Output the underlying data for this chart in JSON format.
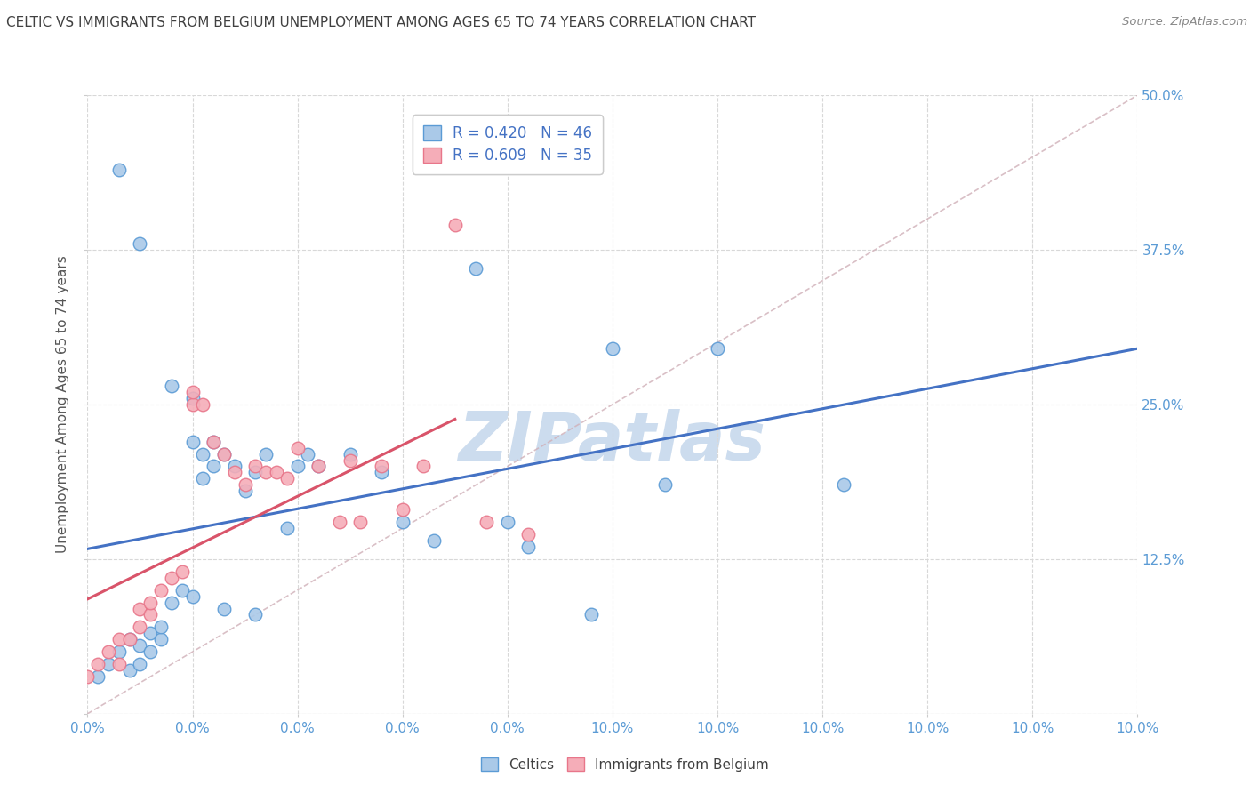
{
  "title": "CELTIC VS IMMIGRANTS FROM BELGIUM UNEMPLOYMENT AMONG AGES 65 TO 74 YEARS CORRELATION CHART",
  "source": "Source: ZipAtlas.com",
  "ylabel": "Unemployment Among Ages 65 to 74 years",
  "xlim": [
    0.0,
    0.1
  ],
  "ylim": [
    0.0,
    0.5
  ],
  "xticks": [
    0.0,
    0.01,
    0.02,
    0.03,
    0.04,
    0.05,
    0.06,
    0.07,
    0.08,
    0.09,
    0.1
  ],
  "xticklabels_show": {
    "0.0": "0.0%",
    "0.1": "10.0%"
  },
  "yticks": [
    0.0,
    0.125,
    0.25,
    0.375,
    0.5
  ],
  "yticklabels": [
    "",
    "12.5%",
    "25.0%",
    "37.5%",
    "50.0%"
  ],
  "R_celtics": 0.42,
  "N_celtics": 46,
  "R_belgium": 0.609,
  "N_belgium": 35,
  "celtics_color": "#aac9e8",
  "belgium_color": "#f5adb8",
  "celtics_edge_color": "#5b9bd5",
  "belgium_edge_color": "#e8768a",
  "celtics_line_color": "#4472c4",
  "belgium_line_color": "#d9546a",
  "ref_line_color": "#d0b0b8",
  "title_color": "#404040",
  "source_color": "#888888",
  "axis_label_color": "#555555",
  "tick_color": "#5b9bd5",
  "grid_color": "#d8d8d8",
  "watermark_color": "#ccdcee",
  "celtics_x": [
    0.001,
    0.002,
    0.003,
    0.004,
    0.004,
    0.005,
    0.005,
    0.006,
    0.006,
    0.007,
    0.007,
    0.008,
    0.009,
    0.01,
    0.01,
    0.011,
    0.011,
    0.012,
    0.012,
    0.013,
    0.014,
    0.015,
    0.016,
    0.017,
    0.019,
    0.02,
    0.021,
    0.022,
    0.025,
    0.028,
    0.03,
    0.033,
    0.037,
    0.04,
    0.042,
    0.048,
    0.05,
    0.055,
    0.06,
    0.072,
    0.008,
    0.01,
    0.013,
    0.016,
    0.003,
    0.005
  ],
  "celtics_y": [
    0.03,
    0.04,
    0.05,
    0.035,
    0.06,
    0.04,
    0.055,
    0.05,
    0.065,
    0.06,
    0.07,
    0.09,
    0.1,
    0.095,
    0.22,
    0.19,
    0.21,
    0.2,
    0.22,
    0.21,
    0.2,
    0.18,
    0.195,
    0.21,
    0.15,
    0.2,
    0.21,
    0.2,
    0.21,
    0.195,
    0.155,
    0.14,
    0.36,
    0.155,
    0.135,
    0.08,
    0.295,
    0.185,
    0.295,
    0.185,
    0.265,
    0.255,
    0.085,
    0.08,
    0.44,
    0.38
  ],
  "belgium_x": [
    0.0,
    0.001,
    0.002,
    0.003,
    0.003,
    0.004,
    0.005,
    0.005,
    0.006,
    0.006,
    0.007,
    0.008,
    0.009,
    0.01,
    0.01,
    0.011,
    0.012,
    0.013,
    0.014,
    0.015,
    0.016,
    0.017,
    0.018,
    0.019,
    0.02,
    0.022,
    0.024,
    0.025,
    0.026,
    0.028,
    0.03,
    0.032,
    0.035,
    0.038,
    0.042
  ],
  "belgium_y": [
    0.03,
    0.04,
    0.05,
    0.04,
    0.06,
    0.06,
    0.07,
    0.085,
    0.08,
    0.09,
    0.1,
    0.11,
    0.115,
    0.25,
    0.26,
    0.25,
    0.22,
    0.21,
    0.195,
    0.185,
    0.2,
    0.195,
    0.195,
    0.19,
    0.215,
    0.2,
    0.155,
    0.205,
    0.155,
    0.2,
    0.165,
    0.2,
    0.395,
    0.155,
    0.145
  ]
}
